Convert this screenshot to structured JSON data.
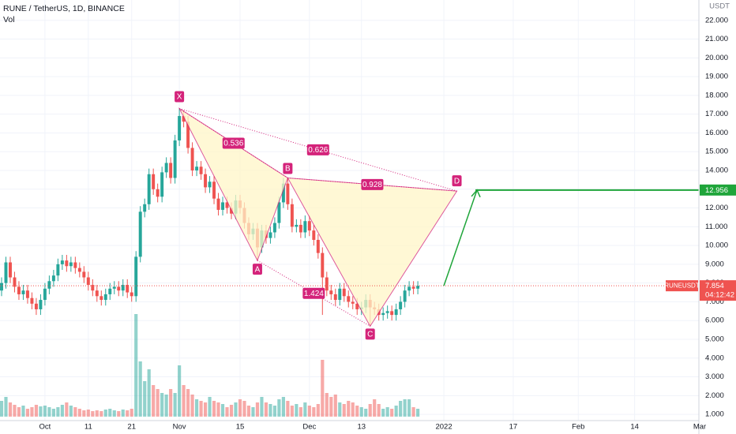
{
  "chart_data": {
    "type": "candlestick",
    "title": "RUNE / TetherUS, 1D, BINANCE",
    "volume_label": "Vol",
    "unit": "USDT",
    "x": [
      "2021-09-21",
      "2021-09-22",
      "2021-09-23",
      "2021-09-24",
      "2021-09-25",
      "2021-09-26",
      "2021-09-27",
      "2021-09-28",
      "2021-09-29",
      "2021-09-30",
      "2021-10-01",
      "2021-10-02",
      "2021-10-03",
      "2021-10-04",
      "2021-10-05",
      "2021-10-06",
      "2021-10-07",
      "2021-10-08",
      "2021-10-09",
      "2021-10-10",
      "2021-10-11",
      "2021-10-12",
      "2021-10-13",
      "2021-10-14",
      "2021-10-15",
      "2021-10-16",
      "2021-10-17",
      "2021-10-18",
      "2021-10-19",
      "2021-10-20",
      "2021-10-21",
      "2021-10-22",
      "2021-10-23",
      "2021-10-24",
      "2021-10-25",
      "2021-10-26",
      "2021-10-27",
      "2021-10-28",
      "2021-10-29",
      "2021-10-30",
      "2021-10-31",
      "2021-11-01",
      "2021-11-02",
      "2021-11-03",
      "2021-11-04",
      "2021-11-05",
      "2021-11-06",
      "2021-11-07",
      "2021-11-08",
      "2021-11-09",
      "2021-11-10",
      "2021-11-11",
      "2021-11-12",
      "2021-11-13",
      "2021-11-14",
      "2021-11-15",
      "2021-11-16",
      "2021-11-17",
      "2021-11-18",
      "2021-11-19",
      "2021-11-20",
      "2021-11-21",
      "2021-11-22",
      "2021-11-23",
      "2021-11-24",
      "2021-11-25",
      "2021-11-26",
      "2021-11-27",
      "2021-11-28",
      "2021-11-29",
      "2021-11-30",
      "2021-12-01",
      "2021-12-02",
      "2021-12-03",
      "2021-12-04",
      "2021-12-05",
      "2021-12-06",
      "2021-12-07",
      "2021-12-08",
      "2021-12-09",
      "2021-12-10",
      "2021-12-11",
      "2021-12-12",
      "2021-12-13",
      "2021-12-14",
      "2021-12-15",
      "2021-12-16",
      "2021-12-17",
      "2021-12-18",
      "2021-12-19",
      "2021-12-20",
      "2021-12-21",
      "2021-12-22",
      "2021-12-23",
      "2021-12-24",
      "2021-12-25",
      "2021-12-26"
    ],
    "open": [
      7.6,
      8.0,
      9.1,
      8.3,
      7.8,
      7.4,
      7.6,
      7.2,
      6.9,
      6.6,
      7.1,
      7.7,
      8.1,
      8.4,
      9.0,
      9.2,
      8.9,
      9.1,
      8.8,
      8.6,
      8.3,
      7.9,
      7.6,
      7.3,
      7.1,
      7.4,
      7.7,
      7.8,
      7.6,
      7.9,
      7.5,
      7.3,
      9.4,
      11.8,
      12.2,
      13.8,
      13.0,
      12.6,
      13.9,
      14.4,
      13.6,
      15.6,
      16.9,
      16.6,
      15.2,
      14.0,
      14.2,
      13.8,
      13.1,
      13.4,
      12.5,
      11.9,
      12.3,
      12.0,
      11.7,
      12.4,
      12.0,
      11.2,
      10.6,
      10.9,
      9.9,
      10.8,
      10.4,
      10.7,
      11.2,
      12.3,
      13.3,
      12.2,
      11.0,
      11.1,
      10.7,
      11.3,
      10.8,
      10.3,
      9.6,
      8.3,
      7.6,
      7.4,
      7.1,
      7.7,
      7.3,
      7.0,
      6.9,
      6.6,
      6.7,
      7.1,
      6.7,
      6.6,
      6.3,
      6.4,
      6.5,
      6.3,
      6.6,
      7.0,
      7.6,
      7.8,
      7.7
    ],
    "high": [
      8.3,
      9.4,
      9.4,
      8.6,
      8.1,
      7.9,
      7.9,
      7.5,
      7.2,
      7.4,
      8.0,
      8.4,
      8.7,
      9.3,
      9.5,
      9.5,
      9.4,
      9.4,
      9.1,
      8.9,
      8.6,
      8.2,
      7.9,
      7.6,
      7.7,
      8.0,
      8.1,
      8.1,
      8.2,
      8.2,
      7.8,
      9.7,
      12.1,
      12.5,
      14.1,
      14.1,
      13.3,
      14.2,
      14.7,
      14.7,
      15.9,
      17.3,
      17.2,
      16.9,
      15.5,
      14.5,
      14.5,
      14.1,
      13.7,
      13.7,
      12.8,
      12.6,
      12.6,
      12.3,
      12.7,
      12.7,
      12.3,
      11.5,
      11.2,
      11.2,
      11.1,
      11.1,
      11.0,
      11.5,
      12.6,
      13.6,
      13.6,
      12.5,
      11.4,
      11.4,
      11.6,
      11.6,
      11.1,
      10.6,
      9.9,
      8.6,
      7.9,
      7.7,
      8.0,
      8.0,
      7.6,
      7.3,
      7.2,
      7.0,
      7.4,
      7.4,
      7.0,
      6.9,
      6.7,
      6.8,
      6.8,
      6.9,
      7.3,
      7.9,
      8.1,
      8.1,
      8.1
    ],
    "low": [
      7.3,
      7.7,
      8.0,
      7.5,
      7.1,
      7.1,
      6.9,
      6.6,
      6.3,
      6.3,
      6.8,
      7.4,
      7.8,
      8.1,
      8.7,
      8.6,
      8.6,
      8.5,
      8.3,
      8.0,
      7.6,
      7.3,
      7.0,
      6.8,
      6.8,
      7.1,
      7.4,
      7.3,
      7.3,
      7.2,
      7.0,
      7.0,
      9.1,
      11.5,
      11.9,
      12.7,
      12.3,
      12.3,
      13.6,
      13.3,
      13.3,
      15.3,
      16.3,
      14.9,
      13.7,
      13.7,
      13.5,
      12.8,
      12.8,
      12.2,
      11.6,
      11.6,
      11.7,
      11.4,
      11.4,
      11.7,
      10.9,
      10.3,
      10.3,
      9.2,
      9.6,
      10.1,
      10.1,
      10.4,
      10.9,
      12.0,
      11.9,
      10.7,
      10.7,
      10.4,
      10.4,
      10.5,
      10.0,
      9.3,
      6.3,
      7.3,
      7.1,
      6.8,
      6.8,
      7.0,
      6.7,
      6.6,
      6.3,
      6.3,
      6.4,
      5.7,
      6.3,
      6.0,
      6.0,
      6.1,
      6.0,
      6.0,
      6.3,
      6.7,
      7.3,
      7.4,
      7.4
    ],
    "close": [
      8.0,
      9.1,
      8.3,
      7.8,
      7.4,
      7.6,
      7.2,
      6.9,
      6.6,
      7.1,
      7.7,
      8.1,
      8.4,
      9.0,
      9.2,
      8.9,
      9.1,
      8.8,
      8.6,
      8.3,
      7.9,
      7.6,
      7.3,
      7.1,
      7.4,
      7.7,
      7.8,
      7.6,
      7.9,
      7.5,
      7.3,
      9.4,
      11.8,
      12.2,
      13.8,
      13.0,
      12.6,
      13.9,
      14.4,
      13.6,
      15.6,
      16.9,
      16.6,
      15.2,
      14.0,
      14.2,
      13.8,
      13.1,
      13.4,
      12.5,
      11.9,
      12.3,
      12.0,
      11.7,
      12.4,
      12.0,
      11.2,
      10.6,
      10.9,
      9.9,
      10.8,
      10.4,
      10.7,
      11.2,
      12.3,
      13.3,
      12.2,
      11.0,
      11.1,
      10.7,
      11.3,
      10.8,
      10.3,
      9.6,
      8.3,
      7.6,
      7.4,
      7.1,
      7.7,
      7.3,
      7.0,
      6.9,
      6.6,
      6.7,
      7.1,
      6.7,
      6.6,
      6.3,
      6.4,
      6.5,
      6.3,
      6.6,
      7.0,
      7.6,
      7.8,
      7.7,
      7.854
    ],
    "volume": [
      20,
      25,
      18,
      15,
      12,
      14,
      10,
      12,
      15,
      13,
      14,
      12,
      10,
      12,
      15,
      18,
      14,
      12,
      10,
      8,
      9,
      7,
      8,
      7,
      9,
      10,
      8,
      7,
      9,
      8,
      10,
      130,
      70,
      45,
      60,
      40,
      35,
      30,
      28,
      35,
      30,
      65,
      40,
      35,
      28,
      22,
      20,
      18,
      25,
      20,
      18,
      16,
      12,
      15,
      18,
      22,
      20,
      14,
      12,
      18,
      25,
      18,
      16,
      14,
      22,
      25,
      20,
      14,
      16,
      12,
      18,
      14,
      12,
      16,
      72,
      30,
      25,
      28,
      18,
      16,
      20,
      18,
      14,
      12,
      10,
      16,
      22,
      16,
      10,
      12,
      10,
      14,
      20,
      22,
      22,
      12,
      10
    ],
    "up_color": "#26a69a",
    "down_color": "#ef5350",
    "xlim": [
      "2021-09-21",
      "2022-03-01"
    ],
    "xticks": [
      {
        "value": "2021-10-01",
        "label": "Oct"
      },
      {
        "value": "2021-10-11",
        "label": "11"
      },
      {
        "value": "2021-10-21",
        "label": "21"
      },
      {
        "value": "2021-11-01",
        "label": "Nov"
      },
      {
        "value": "2021-11-15",
        "label": "15"
      },
      {
        "value": "2021-12-01",
        "label": "Dec"
      },
      {
        "value": "2021-12-13",
        "label": "13"
      },
      {
        "value": "2022-01-01",
        "label": "2022"
      },
      {
        "value": "2022-01-17",
        "label": "17"
      },
      {
        "value": "2022-02-01",
        "label": "Feb"
      },
      {
        "value": "2022-02-14",
        "label": "14"
      },
      {
        "value": "2022-03-01",
        "label": "Mar"
      }
    ],
    "ylim": [
      0.5,
      23
    ],
    "yticks": [
      {
        "value": 1,
        "label": "1.000"
      },
      {
        "value": 2,
        "label": "2.000"
      },
      {
        "value": 3,
        "label": "3.000"
      },
      {
        "value": 4,
        "label": "4.000"
      },
      {
        "value": 5,
        "label": "5.000"
      },
      {
        "value": 6,
        "label": "6.000"
      },
      {
        "value": 7,
        "label": "7.000"
      },
      {
        "value": 8,
        "label": "8.000"
      },
      {
        "value": 9,
        "label": "9.000"
      },
      {
        "value": 10,
        "label": "10.000"
      },
      {
        "value": 11,
        "label": "11.000"
      },
      {
        "value": 12,
        "label": "12.000"
      },
      {
        "value": 13,
        "label": "13.000"
      },
      {
        "value": 14,
        "label": "14.000"
      },
      {
        "value": 15,
        "label": "15.000"
      },
      {
        "value": 16,
        "label": "16.000"
      },
      {
        "value": 17,
        "label": "17.000"
      },
      {
        "value": 18,
        "label": "18.000"
      },
      {
        "value": 19,
        "label": "19.000"
      },
      {
        "value": 20,
        "label": "20.000"
      },
      {
        "value": 21,
        "label": "21.000"
      },
      {
        "value": 22,
        "label": "22.000"
      }
    ],
    "grid": true,
    "last_price": {
      "symbol": "RUNEUSDT",
      "value": 7.854,
      "countdown": "04:12:42"
    },
    "target": {
      "value": 12.956,
      "color": "#1fa53a"
    },
    "pattern": {
      "color": "#d4237a",
      "points": [
        {
          "label": "X",
          "x": "2021-11-01",
          "y": 17.3
        },
        {
          "label": "A",
          "x": "2021-11-19",
          "y": 9.2
        },
        {
          "label": "B",
          "x": "2021-11-26",
          "y": 13.6
        },
        {
          "label": "C",
          "x": "2021-12-15",
          "y": 5.7
        },
        {
          "label": "D",
          "x": "2022-01-04",
          "y": 12.9
        }
      ],
      "ratios": [
        0.536,
        0.626,
        0.928,
        1.424
      ]
    }
  }
}
